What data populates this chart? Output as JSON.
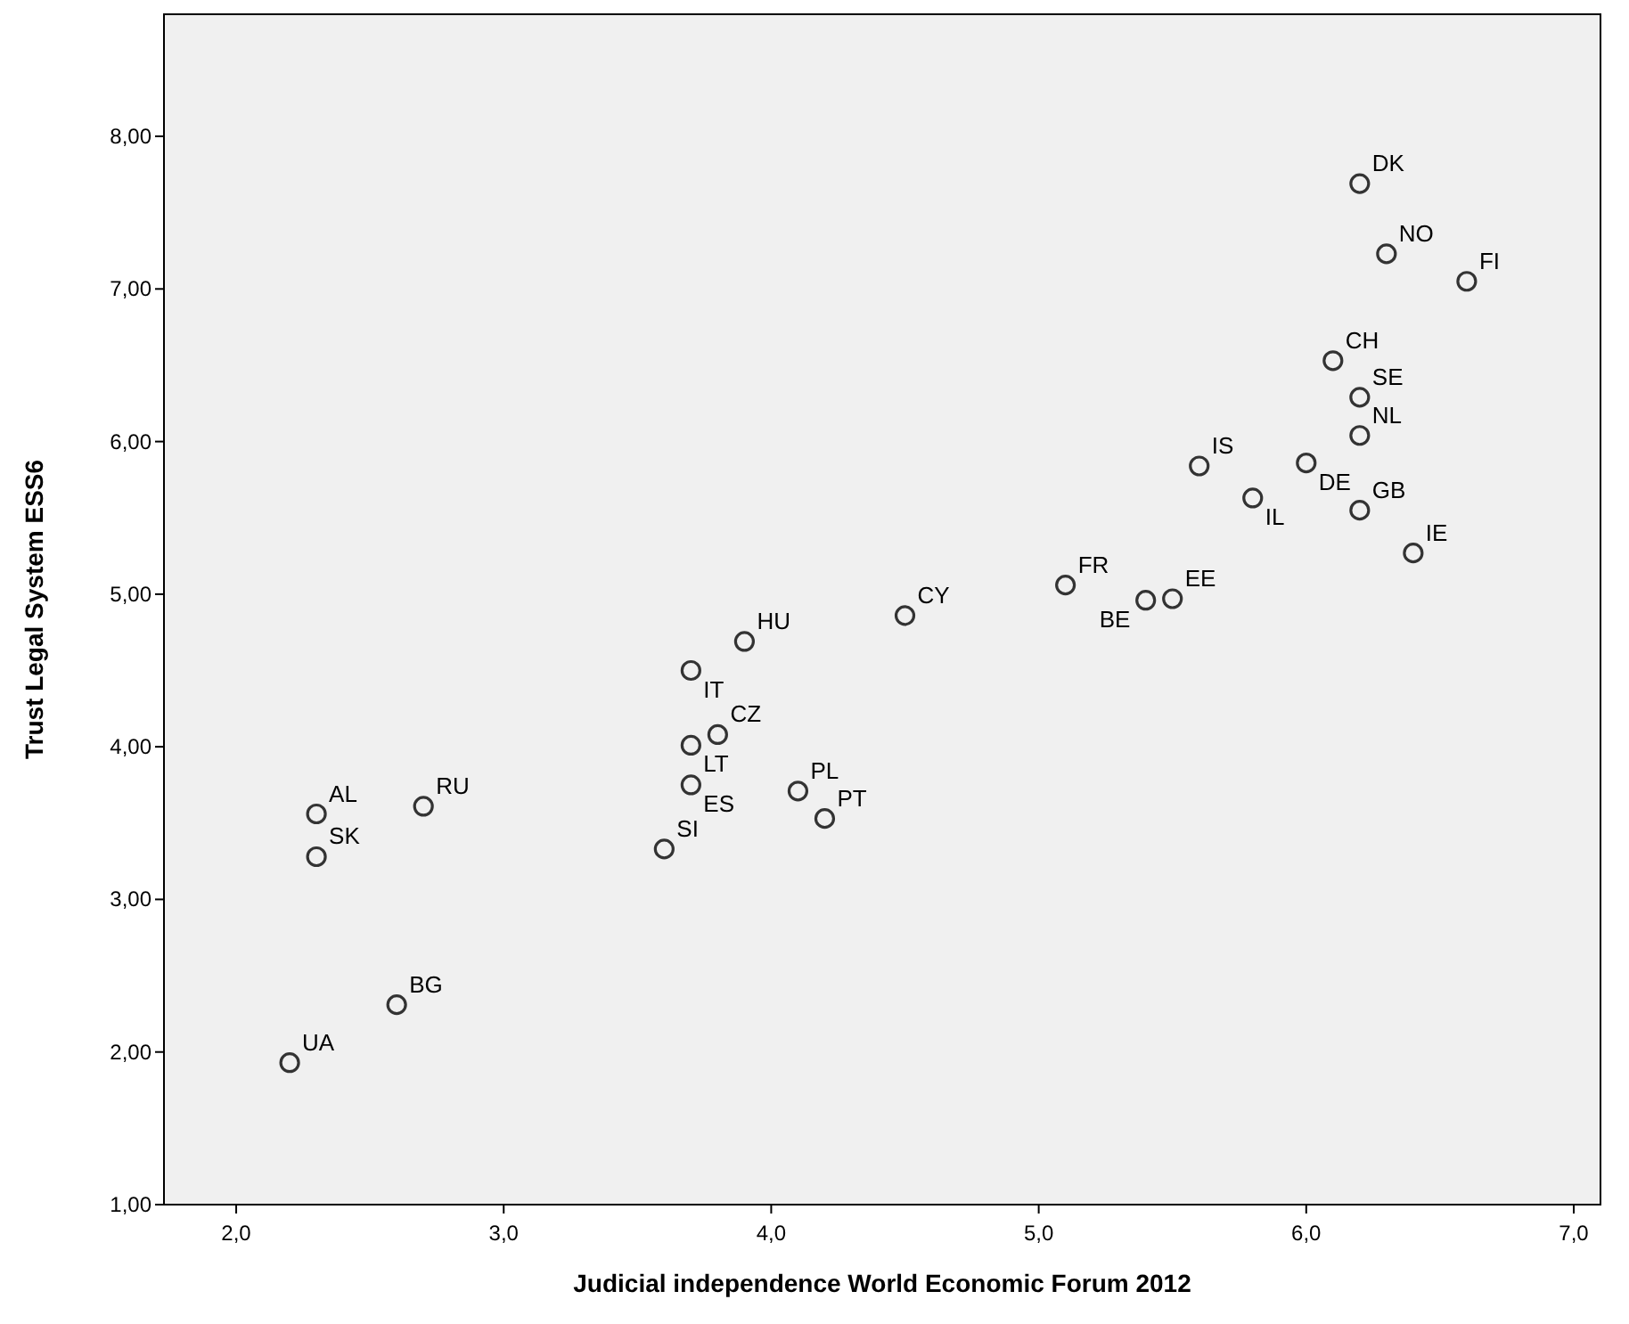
{
  "chart_data": {
    "type": "scatter",
    "xlabel": "Judicial independence World Economic Forum 2012",
    "ylabel": "Trust Legal System ESS6",
    "x": [
      6.2,
      6.3,
      6.6,
      6.1,
      6.2,
      6.2,
      5.6,
      6.0,
      5.8,
      6.2,
      6.4,
      5.1,
      5.4,
      5.5,
      4.5,
      3.9,
      3.7,
      3.7,
      3.8,
      3.7,
      3.6,
      4.1,
      4.2,
      2.3,
      2.3,
      2.7,
      2.6,
      2.2
    ],
    "series": [
      {
        "color": "#333333",
        "values": [
          7.69,
          7.23,
          7.05,
          6.53,
          6.29,
          6.04,
          5.84,
          5.86,
          5.63,
          5.55,
          5.27,
          5.06,
          4.96,
          4.97,
          4.86,
          4.69,
          4.5,
          4.01,
          4.08,
          3.75,
          3.33,
          3.71,
          3.53,
          3.56,
          3.28,
          3.61,
          2.31,
          1.93
        ]
      }
    ],
    "annotations": [
      {
        "text": "DK",
        "x": 6.2,
        "y": 7.69
      },
      {
        "text": "NO",
        "x": 6.3,
        "y": 7.23
      },
      {
        "text": "FI",
        "x": 6.6,
        "y": 7.05
      },
      {
        "text": "CH",
        "x": 6.1,
        "y": 6.53
      },
      {
        "text": "SE",
        "x": 6.2,
        "y": 6.29
      },
      {
        "text": "NL",
        "x": 6.2,
        "y": 6.04
      },
      {
        "text": "IS",
        "x": 5.6,
        "y": 5.84
      },
      {
        "text": "DE",
        "x": 6.0,
        "y": 5.86
      },
      {
        "text": "IL",
        "x": 5.8,
        "y": 5.63
      },
      {
        "text": "GB",
        "x": 6.2,
        "y": 5.55
      },
      {
        "text": "IE",
        "x": 6.4,
        "y": 5.27
      },
      {
        "text": "FR",
        "x": 5.1,
        "y": 5.06
      },
      {
        "text": "BE",
        "x": 5.4,
        "y": 4.96
      },
      {
        "text": "EE",
        "x": 5.5,
        "y": 4.97
      },
      {
        "text": "CY",
        "x": 4.5,
        "y": 4.86
      },
      {
        "text": "HU",
        "x": 3.9,
        "y": 4.69
      },
      {
        "text": "IT",
        "x": 3.7,
        "y": 4.5
      },
      {
        "text": "LT",
        "x": 3.7,
        "y": 4.01
      },
      {
        "text": "CZ",
        "x": 3.8,
        "y": 4.08
      },
      {
        "text": "ES",
        "x": 3.7,
        "y": 3.75
      },
      {
        "text": "SI",
        "x": 3.6,
        "y": 3.33
      },
      {
        "text": "PL",
        "x": 4.1,
        "y": 3.71
      },
      {
        "text": "PT",
        "x": 4.2,
        "y": 3.53
      },
      {
        "text": "AL",
        "x": 2.3,
        "y": 3.56
      },
      {
        "text": "SK",
        "x": 2.3,
        "y": 3.28
      },
      {
        "text": "RU",
        "x": 2.7,
        "y": 3.61
      },
      {
        "text": "BG",
        "x": 2.6,
        "y": 2.31
      },
      {
        "text": "UA",
        "x": 2.2,
        "y": 1.93
      }
    ],
    "xlim": [
      1.73,
      7.1
    ],
    "xticks": [
      {
        "value": 2,
        "label": "2,0"
      },
      {
        "value": 3,
        "label": "3,0"
      },
      {
        "value": 4,
        "label": "4,0"
      },
      {
        "value": 5,
        "label": "5,0"
      },
      {
        "value": 6,
        "label": "6,0"
      },
      {
        "value": 7,
        "label": "7,0"
      }
    ],
    "ylim": [
      1,
      8.8
    ],
    "yticks": [
      {
        "value": 1,
        "label": "1,00"
      },
      {
        "value": 2,
        "label": "2,00"
      },
      {
        "value": 3,
        "label": "3,00"
      },
      {
        "value": 4,
        "label": "4,00"
      },
      {
        "value": 5,
        "label": "5,00"
      },
      {
        "value": 6,
        "label": "6,00"
      },
      {
        "value": 7,
        "label": "7,00"
      },
      {
        "value": 8,
        "label": "8,00"
      }
    ],
    "marker": "circle",
    "grid": false
  }
}
